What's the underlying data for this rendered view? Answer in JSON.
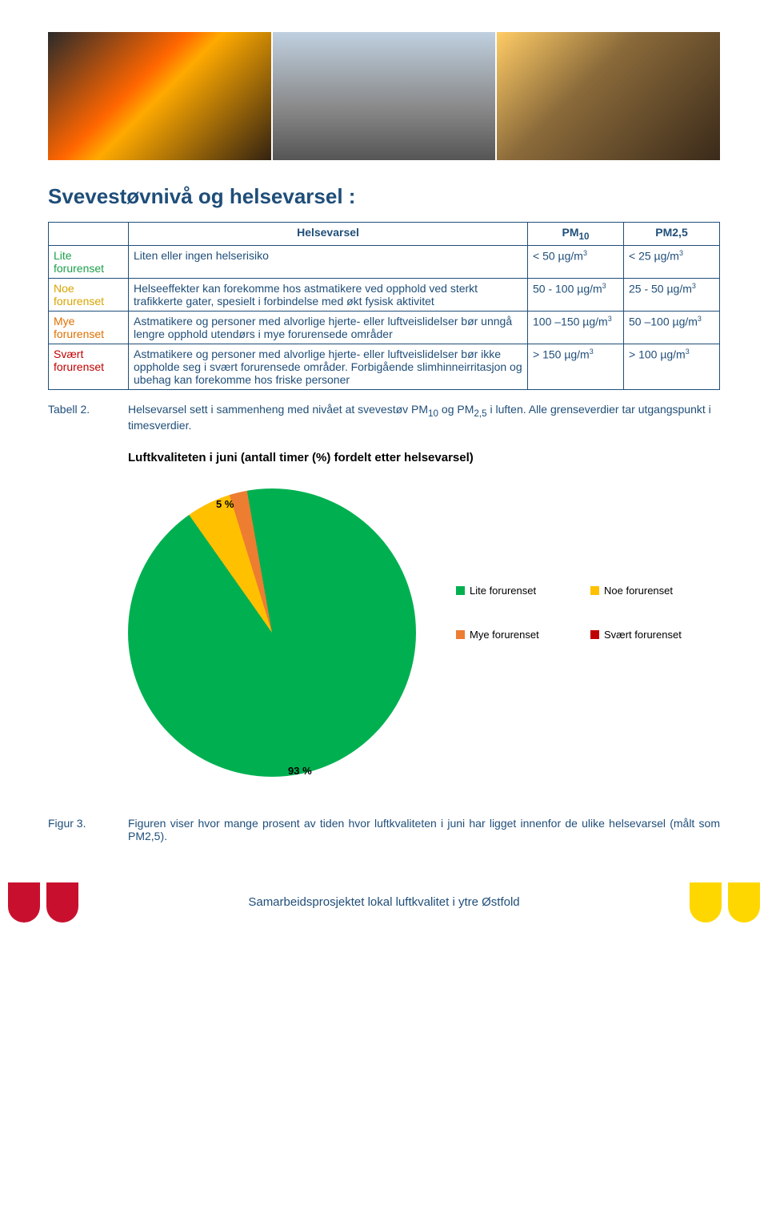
{
  "heading": "Svevestøvnivå og helsevarsel :",
  "table": {
    "headers": {
      "helsevarsel": "Helsevarsel",
      "pm10": "PM",
      "pm10_sub": "10",
      "pm25": "PM2,5"
    },
    "rows": [
      {
        "level": "Lite forurenset",
        "level_class": "lvl-lite",
        "text": "Liten eller ingen helserisiko",
        "pm10": "< 50 µg/m",
        "pm25": "< 25 µg/m"
      },
      {
        "level": "Noe forurenset",
        "level_class": "lvl-noe",
        "text": "Helseeffekter kan forekomme hos astmatikere ved opphold ved sterkt trafikkerte gater, spesielt i forbindelse med økt fysisk aktivitet",
        "pm10": "50 - 100 µg/m",
        "pm25": "25 - 50 µg/m"
      },
      {
        "level": "Mye forurenset",
        "level_class": "lvl-mye",
        "text": "Astmatikere og personer med alvorlige hjerte- eller luftveislidelser bør unngå lengre opphold utendørs i mye forurensede områder",
        "pm10": "100 –150 µg/m",
        "pm25": "50 –100 µg/m"
      },
      {
        "level": "Svært forurenset",
        "level_class": "lvl-svaert",
        "text": "Astmatikere og personer med alvorlige hjerte- eller luftveislidelser bør ikke oppholde seg i svært forurensede områder. Forbigående slimhinneirritasjon og ubehag kan forekomme hos friske personer",
        "pm10": "> 150 µg/m",
        "pm25": "> 100 µg/m"
      }
    ]
  },
  "tabell2": {
    "label": "Tabell 2.",
    "text_a": "Helsevarsel sett i sammenheng med nivået at svevestøv PM",
    "text_b": " og PM",
    "text_c": " i luften. Alle grenseverdier tar utgangspunkt i timesverdier."
  },
  "chart": {
    "title": "Luftkvaliteten i juni (antall timer (%) fordelt etter helsevarsel)",
    "type": "pie",
    "slices": [
      {
        "label": "Lite forurenset",
        "value": 93,
        "color": "#00b050"
      },
      {
        "label": "Noe forurenset",
        "value": 5,
        "color": "#ffc000"
      },
      {
        "label": "Mye forurenset",
        "value": 2,
        "color": "#ed7d31"
      },
      {
        "label": "Svært forurenset",
        "value": 0,
        "color": "#c00000"
      }
    ],
    "label_5": "5 %",
    "label_93": "93 %",
    "background": "#ffffff"
  },
  "legend": {
    "items": [
      {
        "label": "Lite forurenset",
        "color": "#00b050"
      },
      {
        "label": "Noe forurenset",
        "color": "#ffc000"
      },
      {
        "label": "Mye forurenset",
        "color": "#ed7d31"
      },
      {
        "label": "Svært forurenset",
        "color": "#c00000"
      }
    ]
  },
  "figur3": {
    "label": "Figur 3.",
    "text": "Figuren viser hvor mange prosent av tiden hvor luftkvaliteten i juni har ligget innenfor de ulike helsevarsel (målt som PM2,5)."
  },
  "footer": {
    "text": "Samarbeidsprosjektet lokal luftkvalitet i ytre Østfold",
    "crest_colors": [
      "#c8102e",
      "#c8102e",
      "#ffd700",
      "#ffd700"
    ]
  }
}
